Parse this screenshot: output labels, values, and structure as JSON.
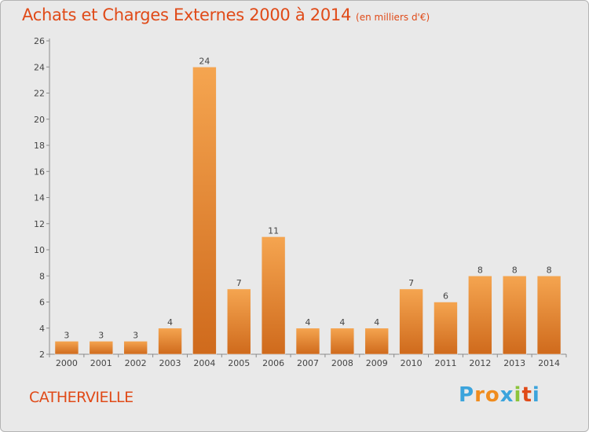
{
  "header": {
    "title": "Achats et Charges Externes 2000 à 2014",
    "unit": "(en milliers d'€)"
  },
  "place_name": "CATHERVIELLE",
  "logo": {
    "text": "Proxiti",
    "colors": [
      "#3ca4dc",
      "#f08c1e",
      "#f08c1e",
      "#3ca4dc",
      "#8cc43c",
      "#e04a18",
      "#3ca4dc"
    ]
  },
  "colors": {
    "title": "#e04a18",
    "bar_light": "#f5a550",
    "bar_dark": "#cf6a1c",
    "plot_bg": "#e9e9e9"
  },
  "chart_data": {
    "type": "bar",
    "title": "Achats et Charges Externes 2000 à 2014",
    "categories": [
      "2000",
      "2001",
      "2002",
      "2003",
      "2004",
      "2005",
      "2006",
      "2007",
      "2008",
      "2009",
      "2010",
      "2011",
      "2012",
      "2013",
      "2014"
    ],
    "values": [
      3,
      3,
      3,
      4,
      24,
      7,
      11,
      4,
      4,
      4,
      7,
      6,
      8,
      8,
      8
    ],
    "data_labels": [
      "3",
      "3",
      "3",
      "4",
      "24",
      "7",
      "11",
      "4",
      "4",
      "4",
      "7",
      "6",
      "8",
      "8",
      "8"
    ],
    "yticks": [
      2,
      4,
      6,
      8,
      10,
      12,
      14,
      16,
      18,
      20,
      22,
      24,
      26
    ],
    "ylim": [
      2,
      26
    ],
    "xlabel": "",
    "ylabel": "",
    "grid": false,
    "legend": "none"
  }
}
